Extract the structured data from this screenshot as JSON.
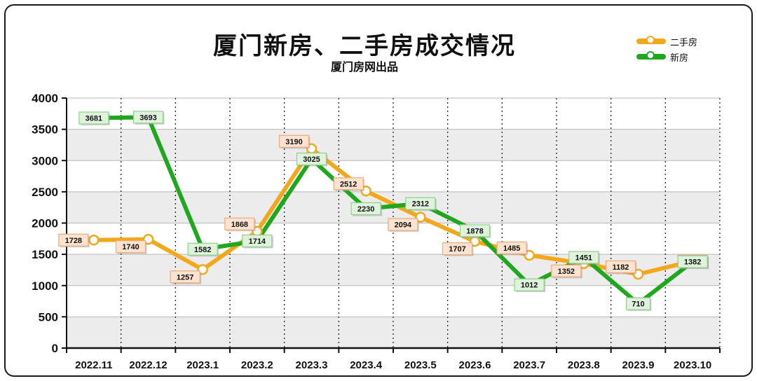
{
  "chart_data": {
    "type": "line",
    "title": "厦门新房、二手房成交情况",
    "subtitle": "厦门房网出品",
    "categories": [
      "2022.11",
      "2022.12",
      "2023.1",
      "2023.2",
      "2023.3",
      "2023.4",
      "2023.5",
      "2023.6",
      "2023.7",
      "2023.8",
      "2023.9",
      "2023.10"
    ],
    "series": [
      {
        "name": "二手房",
        "color": "#f2a81d",
        "label_fill": "#fde3d0",
        "label_border": "#f0a878",
        "values": [
          1728,
          1740,
          1257,
          1868,
          3190,
          2512,
          2094,
          1707,
          1485,
          1352,
          1182,
          1392
        ]
      },
      {
        "name": "新房",
        "color": "#1fa81f",
        "label_fill": "#dff3dc",
        "label_border": "#8fd08a",
        "values": [
          3681,
          3693,
          1582,
          1714,
          3025,
          2230,
          2312,
          1878,
          1012,
          1451,
          710,
          1382
        ]
      }
    ],
    "ylim": [
      0,
      4000
    ],
    "yticks": [
      0,
      500,
      1000,
      1500,
      2000,
      2500,
      3000,
      3500,
      4000
    ],
    "legend": "top-right",
    "grid": true
  }
}
